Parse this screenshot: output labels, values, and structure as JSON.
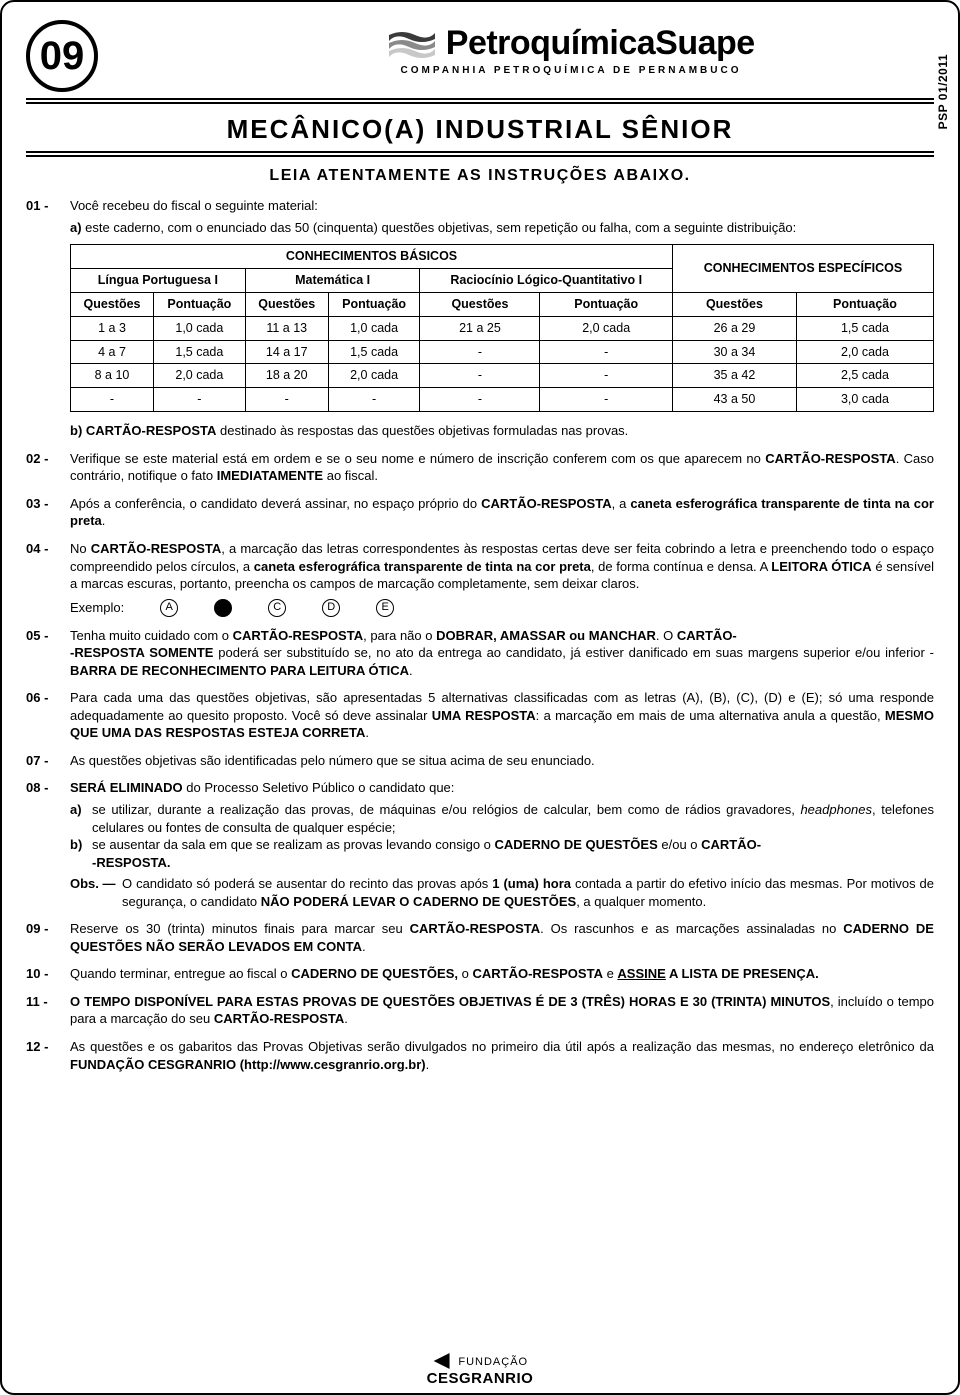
{
  "header": {
    "badge": "09",
    "company": "PetroquímicaSuape",
    "subtitle": "COMPANHIA PETROQUÍMICA DE PERNAMBUCO",
    "psp": "PSP 01/2011"
  },
  "title": "MECÂNICO(A) INDUSTRIAL SÊNIOR",
  "instr_heading": "LEIA ATENTAMENTE AS INSTRUÇÕES ABAIXO.",
  "table": {
    "group_basic": "CONHECIMENTOS BÁSICOS",
    "group_spec": "CONHECIMENTOS ESPECÍFICOS",
    "sub1": "Língua Portuguesa I",
    "sub2": "Matemática I",
    "sub3": "Raciocínio Lógico-Quantitativo I",
    "col_q": "Questões",
    "col_p": "Pontuação",
    "rows": [
      [
        "1 a 3",
        "1,0 cada",
        "11 a 13",
        "1,0 cada",
        "21 a 25",
        "2,0 cada",
        "26 a 29",
        "1,5 cada"
      ],
      [
        "4 a 7",
        "1,5 cada",
        "14 a 17",
        "1,5 cada",
        "-",
        "-",
        "30 a 34",
        "2,0 cada"
      ],
      [
        "8 a 10",
        "2,0 cada",
        "18 a 20",
        "2,0 cada",
        "-",
        "-",
        "35 a 42",
        "2,5 cada"
      ],
      [
        "-",
        "-",
        "-",
        "-",
        "-",
        "-",
        "43 a 50",
        "3,0 cada"
      ]
    ]
  },
  "items": {
    "i01": {
      "num": "01 -",
      "lead": "Você recebeu do fiscal o seguinte material:",
      "a_html": "<b>a)</b> este caderno, com o enunciado das 50 (cinquenta) questões objetivas, sem repetição ou falha, com a seguinte distribuição:",
      "b_html": "<b>b) CARTÃO-RESPOSTA</b> destinado às respostas das questões objetivas formuladas nas provas."
    },
    "i02": {
      "num": "02 -",
      "html": "Verifique se este material está em ordem e se o seu nome e número de inscrição conferem com os que aparecem no <b>CARTÃO-RESPOSTA</b>. Caso contrário, notifique o fato <b>IMEDIATAMENTE</b> ao fiscal."
    },
    "i03": {
      "num": "03 -",
      "html": "Após a conferência, o candidato deverá assinar, no espaço próprio do <b>CARTÃO-RESPOSTA</b>, a <b>caneta esferográfica transparente de tinta na cor preta</b>."
    },
    "i04": {
      "num": "04 -",
      "html": "No <b>CARTÃO-RESPOSTA</b>, a marcação das letras correspondentes às respostas certas deve ser feita cobrindo a letra e preenchendo todo o espaço compreendido pelos círculos, a <b>caneta esferográfica transparente de tinta na cor preta</b>, de forma contínua e densa. A <b>LEITORA ÓTICA</b> é sensível a marcas escuras, portanto, preencha os campos de marcação completamente, sem deixar claros.",
      "example_label": "Exemplo:",
      "opts": [
        "A",
        "",
        "C",
        "D",
        "E"
      ]
    },
    "i05": {
      "num": "05 -",
      "html": "Tenha muito cuidado com o <b>CARTÃO-RESPOSTA</b>, para não o <b>DOBRAR, AMASSAR ou MANCHAR</b>. O <b>CARTÃO-<br>-RESPOSTA SOMENTE</b> poderá ser substituído se, no ato da entrega ao candidato, já estiver danificado em suas margens superior e/ou inferior - <b>BARRA DE RECONHECIMENTO PARA LEITURA ÓTICA</b>."
    },
    "i06": {
      "num": "06 -",
      "html": "Para cada uma das questões objetivas, são apresentadas 5 alternativas classificadas com as letras (A), (B), (C), (D) e (E); só uma responde adequadamente ao quesito proposto. Você só deve assinalar <b>UMA RESPOSTA</b>: a marcação em mais de uma alternativa anula a questão, <b>MESMO QUE UMA DAS RESPOSTAS ESTEJA CORRETA</b>."
    },
    "i07": {
      "num": "07 -",
      "html": "As questões objetivas são identificadas pelo número que se situa acima de seu enunciado."
    },
    "i08": {
      "num": "08 -",
      "lead_html": "<b>SERÁ ELIMINADO</b> do Processo Seletivo Público o candidato que:",
      "a": "se utilizar, durante a realização das provas, de máquinas e/ou relógios de calcular, bem como de rádios gravadores, <span class='it'>headphones</span>, telefones celulares ou fontes de consulta de qualquer espécie;",
      "b": "se ausentar da sala em que se realizam as provas levando consigo o <b>CADERNO DE QUESTÕES</b> e/ou o <b>CARTÃO-<br>-RESPOSTA.</b>",
      "obs_label": "Obs. —",
      "obs": "O candidato só poderá se ausentar do recinto das provas após <b>1 (uma) hora</b> contada a partir do efetivo início das mesmas. Por motivos de segurança, o candidato <b>NÃO PODERÁ LEVAR O CADERNO DE QUESTÕES</b>, a qualquer momento."
    },
    "i09": {
      "num": "09 -",
      "html": "Reserve os 30 (trinta) minutos finais para marcar seu <b>CARTÃO-RESPOSTA</b>. Os rascunhos e as marcações assinaladas no <b>CADERNO DE QUESTÕES NÃO SERÃO LEVADOS EM CONTA</b>."
    },
    "i10": {
      "num": "10 -",
      "html": "Quando terminar, entregue ao fiscal o <b>CADERNO DE QUESTÕES,</b> o <b>CARTÃO-RESPOSTA</b> e <b><span class='underline'>ASSINE</span> A LISTA DE PRESENÇA.</b>"
    },
    "i11": {
      "num": "11 -",
      "html": "<b>O TEMPO DISPONÍVEL PARA ESTAS PROVAS DE QUESTÕES OBJETIVAS É DE 3 (TRÊS) HORAS E 30 (TRINTA) MINUTOS</b>, incluído o tempo para a marcação do seu <b>CARTÃO-RESPOSTA</b>."
    },
    "i12": {
      "num": "12 -",
      "html": "As questões e os gabaritos das Provas Objetivas serão divulgados no primeiro dia útil após a realização das mesmas, no endereço eletrônico da <b>FUNDAÇÃO CESGRANRIO (http://www.cesgranrio.org.br)</b>."
    }
  },
  "footer": {
    "line1": "FUNDAÇÃO",
    "line2": "CESGRANRIO"
  },
  "colors": {
    "text": "#000000",
    "bg": "#ffffff",
    "logo_dark": "#3a3a3a",
    "logo_mid": "#8a8a8a",
    "logo_light": "#c8c8c8"
  }
}
